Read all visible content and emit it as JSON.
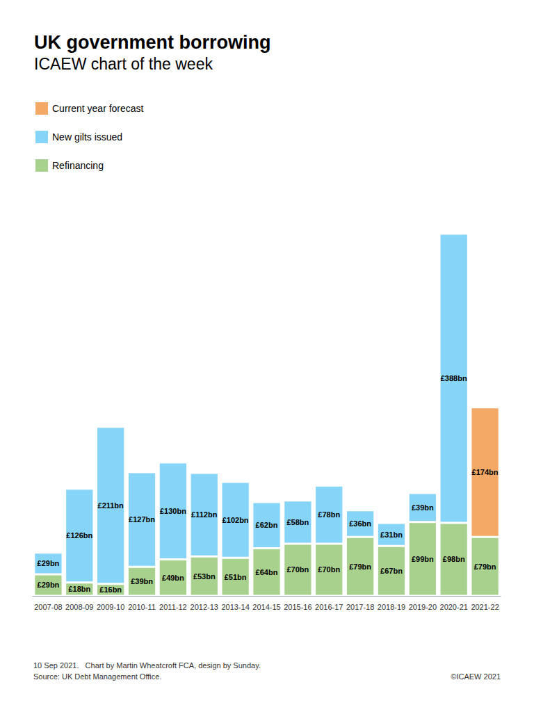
{
  "chart_data": {
    "type": "bar",
    "title": "UK government borrowing",
    "subtitle": "ICAEW chart of the week",
    "categories": [
      "2007-08",
      "2008-09",
      "2009-10",
      "2010-11",
      "2011-12",
      "2012-13",
      "2013-14",
      "2014-15",
      "2015-16",
      "2016-17",
      "2017-18",
      "2018-19",
      "2019-20",
      "2020-21",
      "2021-22"
    ],
    "series": [
      {
        "name": "Refinancing",
        "color": "#a9d18e",
        "values": [
          29,
          18,
          16,
          39,
          49,
          53,
          51,
          64,
          70,
          70,
          79,
          67,
          99,
          98,
          79
        ],
        "value_labels": [
          "£29bn",
          "£18bn",
          "£16bn",
          "£39bn",
          "£49bn",
          "£53bn",
          "£51bn",
          "£64bn",
          "£70bn",
          "£70bn",
          "£79bn",
          "£67bn",
          "£99bn",
          "£98bn",
          "£79bn"
        ]
      },
      {
        "name": "New gilts issued",
        "color": "#87d4f9",
        "values": [
          29,
          126,
          211,
          127,
          130,
          112,
          102,
          62,
          58,
          78,
          36,
          31,
          39,
          388,
          null
        ],
        "value_labels": [
          "£29bn",
          "£126bn",
          "£211bn",
          "£127bn",
          "£130bn",
          "£112bn",
          "£102bn",
          "£62bn",
          "£58bn",
          "£78bn",
          "£36bn",
          "£31bn",
          "£39bn",
          "£388bn",
          null
        ]
      },
      {
        "name": "Current year forecast",
        "color": "#f4aa66",
        "values": [
          null,
          null,
          null,
          null,
          null,
          null,
          null,
          null,
          null,
          null,
          null,
          null,
          null,
          null,
          174
        ],
        "value_labels": [
          null,
          null,
          null,
          null,
          null,
          null,
          null,
          null,
          null,
          null,
          null,
          null,
          null,
          null,
          "£174bn"
        ]
      }
    ],
    "stacked": true,
    "data_labels": true,
    "tick_labels": "x",
    "grid": false,
    "legend": "top-left",
    "ylim": [
      0,
      500
    ],
    "yticks": [
      0,
      500
    ],
    "annotations": [
      "10 Sep 2021.   Chart by Martin Wheatcroft FCA, design by Sunday.",
      "Source: UK Debt Management Office.",
      "©ICAEW 2021"
    ]
  }
}
